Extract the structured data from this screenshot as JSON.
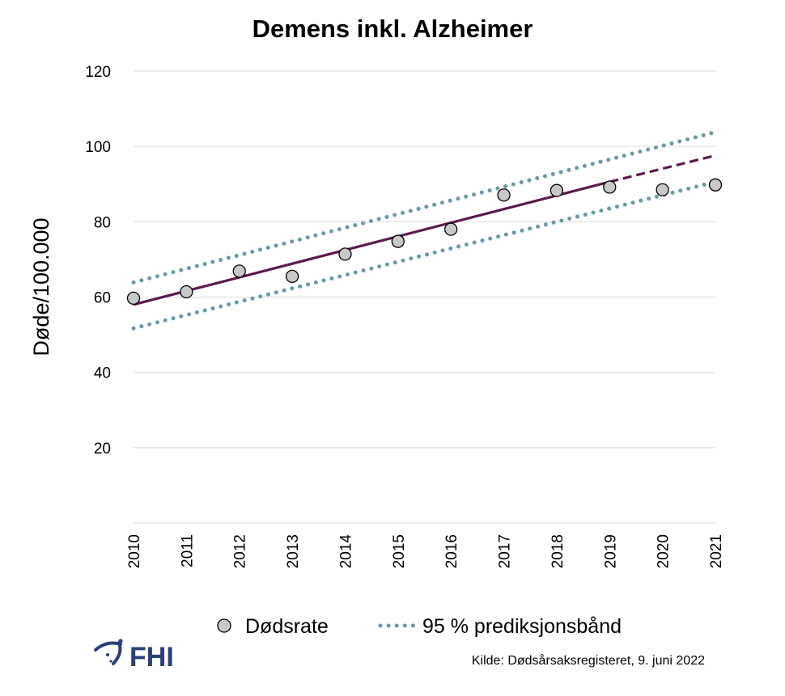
{
  "chart_data": {
    "type": "scatter",
    "title": "Demens inkl. Alzheimer",
    "ylabel": "Døde/100.000",
    "xlabel": "",
    "ylim": [
      0,
      120
    ],
    "yticks": [
      20,
      40,
      60,
      80,
      100,
      120
    ],
    "x": [
      "2010",
      "2011",
      "2012",
      "2013",
      "2014",
      "2015",
      "2016",
      "2017",
      "2018",
      "2019",
      "2020",
      "2021"
    ],
    "grid": true,
    "legend_position": "bottom",
    "series": [
      {
        "name": "Dødsrate",
        "kind": "points",
        "values": [
          59.7,
          61.4,
          66.9,
          65.5,
          71.4,
          74.8,
          78.0,
          87.1,
          88.3,
          89.2,
          88.5,
          89.8
        ],
        "color": "#c8c8c8"
      },
      {
        "name": "",
        "kind": "trend",
        "x": [
          "2010",
          "2019"
        ],
        "values": [
          58.0,
          90.6
        ],
        "color": "#5b1a4c",
        "style": "solid"
      },
      {
        "name": "",
        "kind": "trend-projection",
        "x": [
          "2019",
          "2021"
        ],
        "values": [
          90.6,
          97.6
        ],
        "color": "#5b1a4c",
        "style": "dashed"
      },
      {
        "name": "95 % prediksjonsbånd",
        "kind": "band-upper",
        "x": [
          "2010",
          "2021"
        ],
        "values": [
          63.9,
          103.8
        ],
        "color": "#6b9aa8",
        "style": "dotted"
      },
      {
        "name": "",
        "kind": "band-lower",
        "x": [
          "2010",
          "2021"
        ],
        "values": [
          51.7,
          90.6
        ],
        "color": "#6b9aa8",
        "style": "dotted"
      }
    ]
  },
  "source": "Kilde: Dødsårsaksregisteret, 9. juni 2022",
  "logo": {
    "text": "FHI",
    "color": "#2b3f7a",
    "icon": "fhi-logo-icon"
  }
}
